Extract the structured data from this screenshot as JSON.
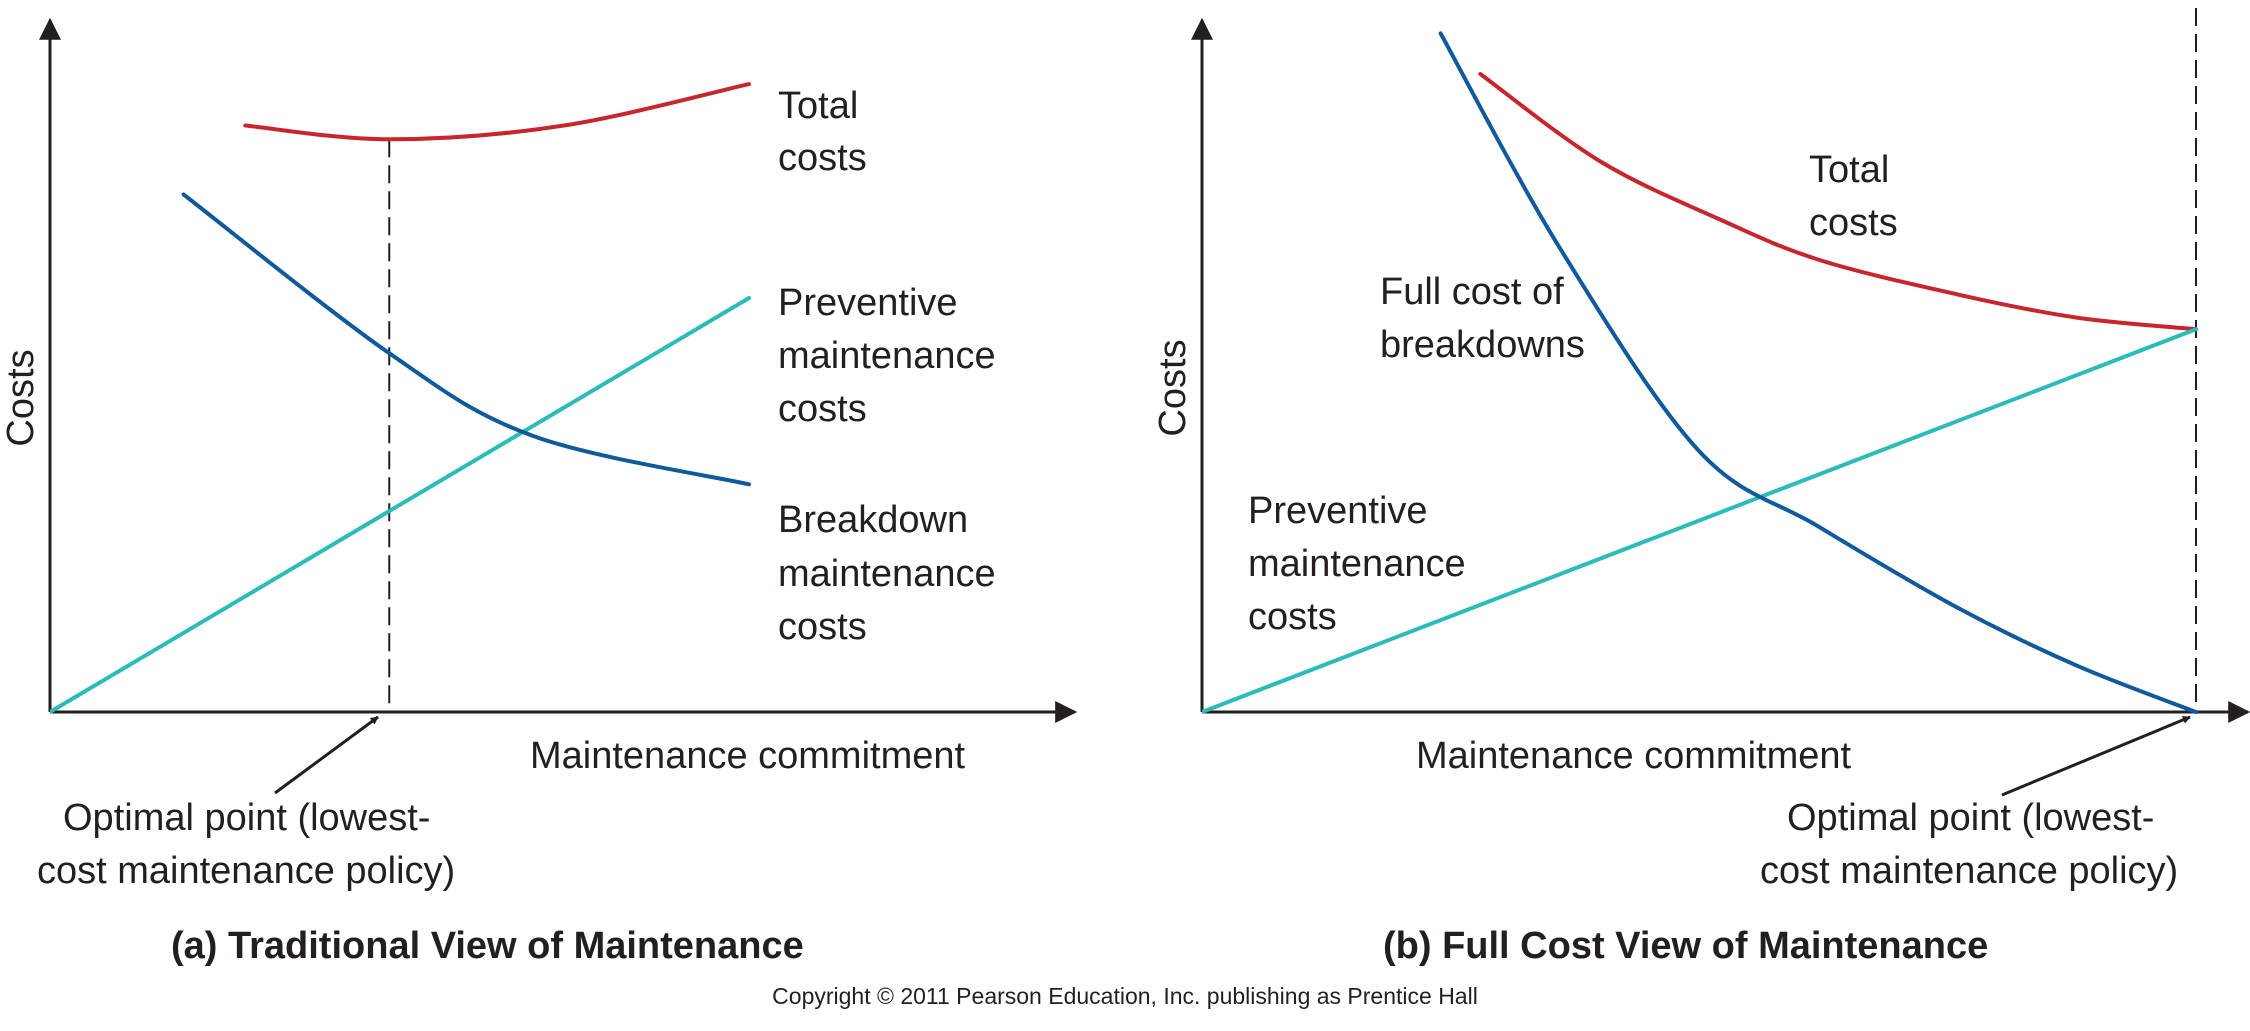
{
  "chart_data": [
    {
      "type": "line",
      "title": "(a) Traditional View of Maintenance",
      "xlabel": "Maintenance commitment",
      "ylabel": "Costs",
      "xlim": [
        0,
        100
      ],
      "ylim": [
        0,
        100
      ],
      "grid": false,
      "series": [
        {
          "name": "Total costs",
          "label_lines": [
            "Total",
            "costs"
          ],
          "color": "#c8252c",
          "x": [
            19,
            33,
            50,
            68
          ],
          "y": [
            85,
            83,
            85,
            91
          ]
        },
        {
          "name": "Preventive maintenance costs",
          "label_lines": [
            "Preventive",
            "maintenance",
            "costs"
          ],
          "color": "#2bbcb8",
          "x": [
            0,
            68
          ],
          "y": [
            0,
            60
          ]
        },
        {
          "name": "Breakdown maintenance costs",
          "label_lines": [
            "Breakdown",
            "maintenance",
            "costs"
          ],
          "color": "#0e5a9c",
          "x": [
            13,
            33,
            47,
            68
          ],
          "y": [
            75,
            52,
            40,
            33
          ]
        }
      ],
      "annotation": {
        "text_lines": [
          "Optimal point (lowest-",
          "cost maintenance policy)"
        ],
        "x": 33
      }
    },
    {
      "type": "line",
      "title": "(b) Full Cost View of Maintenance",
      "xlabel": "Maintenance commitment",
      "ylabel": "Costs",
      "xlim": [
        0,
        100
      ],
      "ylim": [
        0,
        100
      ],
      "grid": false,
      "series": [
        {
          "name": "Total costs",
          "label_lines": [
            "Total",
            "costs"
          ],
          "color": "#c8252c",
          "x": [
            28,
            40,
            52,
            62,
            76,
            88,
            100
          ],
          "y": [
            110,
            95,
            85,
            78,
            72,
            68,
            66
          ]
        },
        {
          "name": "Preventive maintenance costs",
          "label_lines": [
            "Preventive",
            "maintenance",
            "costs"
          ],
          "color": "#2bbcb8",
          "x": [
            0,
            100
          ],
          "y": [
            0,
            66
          ]
        },
        {
          "name": "Full cost of breakdowns",
          "label_lines": [
            "Full cost of",
            "breakdowns"
          ],
          "color": "#0e5a9c",
          "x": [
            24,
            36,
            50,
            62,
            76,
            88,
            100
          ],
          "y": [
            117,
            80,
            45,
            32,
            18,
            8,
            0
          ]
        }
      ],
      "annotation": {
        "text_lines": [
          "Optimal point (lowest-",
          "cost maintenance policy)"
        ],
        "x": 100
      }
    }
  ],
  "footer": {
    "copyright": "Copyright © 2011 Pearson Education, Inc. publishing as Prentice Hall"
  }
}
